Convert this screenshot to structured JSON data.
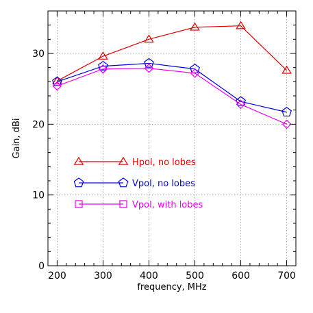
{
  "chart_data": {
    "type": "line",
    "xlabel": "frequency, MHz",
    "ylabel": "Gain, dBi",
    "xlim": [
      180,
      720
    ],
    "ylim": [
      0,
      36
    ],
    "x_ticks": [
      200,
      300,
      400,
      500,
      600,
      700
    ],
    "y_ticks": [
      0,
      10,
      20,
      30
    ],
    "grid": true,
    "legend_placement": "center-left",
    "x": [
      200,
      300,
      400,
      500,
      600,
      700
    ],
    "series": [
      {
        "name": "Hpol, no lobes",
        "color": "#e00000",
        "marker": "triangle",
        "values": [
          26.1,
          29.6,
          32.0,
          33.7,
          33.9,
          27.6
        ]
      },
      {
        "name": "Vpol, no lobes",
        "color": "#0000dd",
        "marker": "pentagon",
        "values": [
          26.0,
          28.2,
          28.6,
          27.8,
          23.2,
          21.7
        ]
      },
      {
        "name": "Vpol, with lobes",
        "color": "#ee00ee",
        "marker": "diamond",
        "values": [
          25.4,
          27.8,
          27.9,
          27.2,
          22.8,
          20.0
        ]
      }
    ]
  }
}
